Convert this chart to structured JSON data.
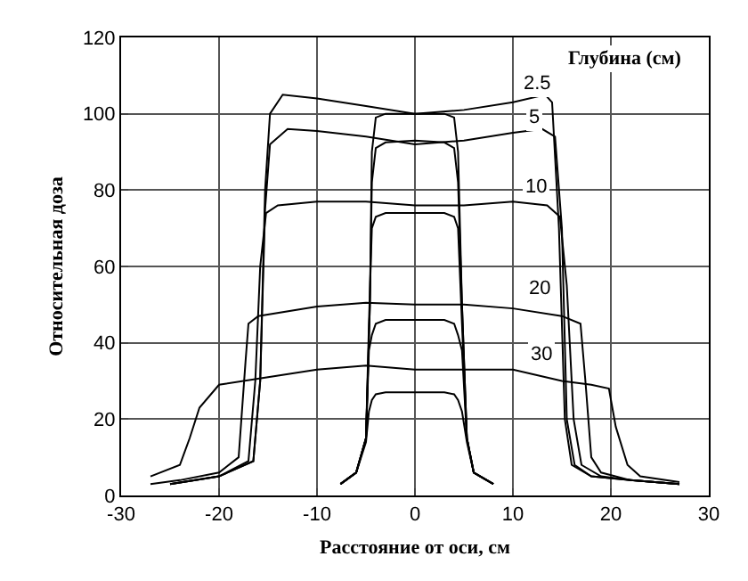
{
  "chart_data": {
    "type": "line",
    "xlabel": "Расстояние от оси, см",
    "ylabel": "Относительная доза",
    "legend_title": "Глубина (см)",
    "xlim": [
      -30,
      30
    ],
    "xticks": [
      -30,
      -20,
      -10,
      0,
      10,
      20,
      30
    ],
    "ylim": [
      0,
      120
    ],
    "yticks": [
      0,
      20,
      40,
      60,
      80,
      100,
      120
    ],
    "grid": true,
    "marker": "none",
    "line_style": "solid",
    "series": [
      {
        "color": "#000000",
        "x": [
          -25,
          -20,
          -16.5,
          -15.8,
          -15.3,
          -14.8,
          -13.5,
          -10,
          -5,
          0,
          5,
          10,
          13.3,
          14,
          14.7,
          15.3,
          16,
          18,
          22,
          27
        ],
        "values": [
          3,
          5,
          9,
          30,
          80,
          100,
          105,
          104,
          102,
          100,
          101,
          103,
          105,
          103,
          70,
          20,
          8,
          5,
          4,
          3
        ]
      },
      {
        "color": "#000000",
        "x": [
          -25,
          -20,
          -16.5,
          -15.8,
          -15.3,
          -14.8,
          -13,
          -10,
          -5,
          0,
          5,
          10,
          13,
          14.3,
          15,
          15.5,
          16.3,
          18,
          22,
          27
        ],
        "values": [
          3,
          5,
          9,
          30,
          75,
          92,
          96,
          95.5,
          94,
          92,
          93,
          95,
          96,
          94,
          70,
          20,
          8,
          5,
          4,
          3
        ]
      },
      {
        "color": "#000000",
        "x": [
          -25,
          -20,
          -17,
          -16.3,
          -15.8,
          -15.2,
          -14,
          -10,
          -5,
          0,
          5,
          10,
          13.5,
          14.8,
          15.5,
          16.2,
          17,
          19,
          22,
          27
        ],
        "values": [
          3,
          5,
          9,
          30,
          60,
          74,
          76,
          77,
          77,
          76,
          76,
          77,
          76,
          73,
          55,
          20,
          8,
          5,
          4,
          3
        ]
      },
      {
        "color": "#000000",
        "x": [
          -27,
          -24,
          -20,
          -18,
          -17.3,
          -17,
          -16,
          -10,
          -5,
          0,
          5,
          10,
          15,
          16.9,
          17.4,
          18,
          19,
          22,
          27
        ],
        "values": [
          3,
          4,
          6,
          10,
          35,
          45,
          47,
          49.5,
          50.5,
          50,
          50,
          49,
          47,
          45,
          30,
          10,
          6,
          4,
          3
        ]
      },
      {
        "color": "#000000",
        "x": [
          -27,
          -24,
          -23,
          -22,
          -20,
          -15,
          -10,
          -5,
          0,
          5,
          10,
          15,
          18,
          19.8,
          20.5,
          21.7,
          23,
          27
        ],
        "values": [
          5,
          8,
          15,
          23,
          29,
          31,
          33,
          34,
          33,
          33,
          33,
          30,
          29,
          28,
          18,
          8,
          5,
          3.5
        ]
      },
      {
        "color": "#000000",
        "x": [
          -7.6,
          -6,
          -5,
          -4.6,
          -4.4,
          -4,
          -3,
          0,
          3,
          4,
          4.4,
          4.8,
          5.3,
          6,
          8
        ],
        "values": [
          3,
          6,
          15,
          50,
          90,
          99,
          100,
          100,
          100,
          99,
          90,
          50,
          15,
          6,
          3
        ]
      },
      {
        "color": "#000000",
        "x": [
          -7.6,
          -6,
          -5,
          -4.6,
          -4.4,
          -4,
          -3,
          0,
          3,
          4,
          4.4,
          4.8,
          5.3,
          6,
          8
        ],
        "values": [
          3,
          6,
          15,
          50,
          82,
          91,
          92.5,
          93,
          92.5,
          91,
          82,
          50,
          15,
          6,
          3
        ]
      },
      {
        "color": "#000000",
        "x": [
          -7.6,
          -6,
          -5,
          -4.7,
          -4.4,
          -4,
          -3,
          0,
          3,
          4,
          4.4,
          4.8,
          5.3,
          6,
          8
        ],
        "values": [
          3,
          6,
          15,
          45,
          70,
          73,
          74,
          74,
          74,
          73,
          70,
          45,
          15,
          6,
          3
        ]
      },
      {
        "color": "#000000",
        "x": [
          -7.6,
          -6,
          -5,
          -4.7,
          -4.4,
          -4,
          -3,
          0,
          3,
          4,
          4.4,
          4.8,
          5.3,
          6,
          8
        ],
        "values": [
          3,
          6,
          15,
          38,
          42,
          45,
          46,
          46,
          46,
          45,
          42,
          38,
          15,
          6,
          3
        ]
      },
      {
        "color": "#000000",
        "x": [
          -7.6,
          -6,
          -5,
          -4.7,
          -4.4,
          -4,
          -3,
          0,
          3,
          4,
          4.4,
          4.8,
          5.3,
          6,
          8
        ],
        "values": [
          3,
          6,
          14,
          22,
          25,
          26.5,
          27,
          27,
          27,
          26.5,
          25,
          22,
          14,
          6,
          3
        ]
      }
    ],
    "annotations": [
      {
        "text": "2.5",
        "x": 12.4,
        "y": 108
      },
      {
        "text": "5",
        "x": 12.2,
        "y": 99
      },
      {
        "text": "10",
        "x": 12.4,
        "y": 81
      },
      {
        "text": "20",
        "x": 12.7,
        "y": 54
      },
      {
        "text": "30",
        "x": 12.9,
        "y": 37
      }
    ]
  }
}
